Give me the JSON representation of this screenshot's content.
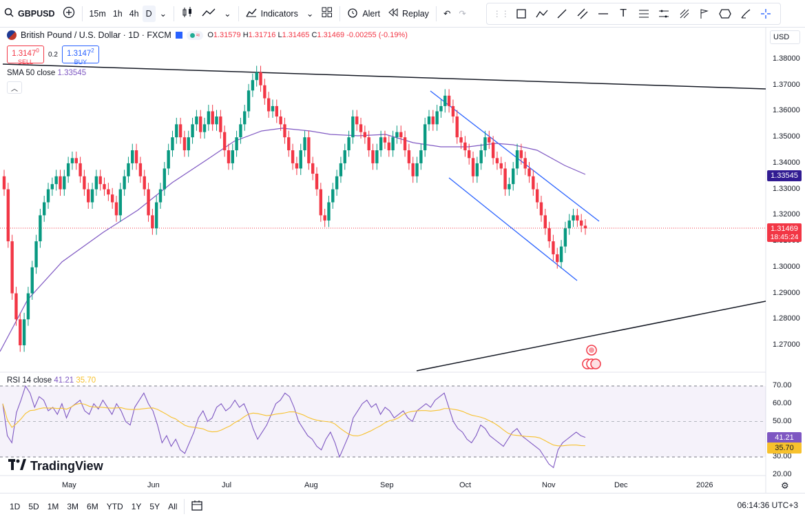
{
  "toolbar": {
    "symbol": "GBPUSD",
    "intervals": [
      "15m",
      "1h",
      "4h",
      "D"
    ],
    "active_interval": "D",
    "indicators_label": "Indicators",
    "alert_label": "Alert",
    "replay_label": "Replay"
  },
  "legend": {
    "title": "British Pound / U.S. Dollar · 1D · FXCM",
    "open_label": "O",
    "open": "1.31579",
    "high_label": "H",
    "high": "1.31716",
    "low_label": "L",
    "low": "1.31465",
    "close_label": "C",
    "close": "1.31469",
    "change": "-0.00255 (-0.19%)"
  },
  "trade": {
    "sell_price": "1.3147",
    "sell_price_sup": "0",
    "sell_label": "SELL",
    "spread": "0.2",
    "buy_price": "1.3147",
    "buy_price_sup": "2",
    "buy_label": "BUY"
  },
  "sma": {
    "label": "SMA 50 close",
    "value": "1.33545"
  },
  "rsi": {
    "label": "RSI 14 close",
    "value": "41.21",
    "ma_value": "35.70"
  },
  "currency": "USD",
  "price_axis": [
    "1.38000",
    "1.37000",
    "1.36000",
    "1.35000",
    "1.34000",
    "1.33000",
    "1.32000",
    "1.31000",
    "1.30000",
    "1.29000",
    "1.28000",
    "1.27000"
  ],
  "rsi_axis": [
    "70.00",
    "60.00",
    "50.00",
    "30.00",
    "20.00"
  ],
  "price_tags": {
    "sma": "1.33545",
    "last": "1.31469",
    "countdown": "18:45:24",
    "rsi": "41.21",
    "rsi_ma": "35.70"
  },
  "time_axis": [
    "May",
    "Jun",
    "Jul",
    "Aug",
    "Sep",
    "Oct",
    "Nov",
    "Dec",
    "2026"
  ],
  "logo_text": "TradingView",
  "ranges": [
    "1D",
    "5D",
    "1M",
    "3M",
    "6M",
    "YTD",
    "1Y",
    "5Y",
    "All"
  ],
  "clock": "06:14:36 UTC+3",
  "colors": {
    "up": "#089981",
    "down": "#f23645",
    "sma": "#7e57c2",
    "rsi_ma": "#f7c12d",
    "channel": "#2962ff"
  }
}
